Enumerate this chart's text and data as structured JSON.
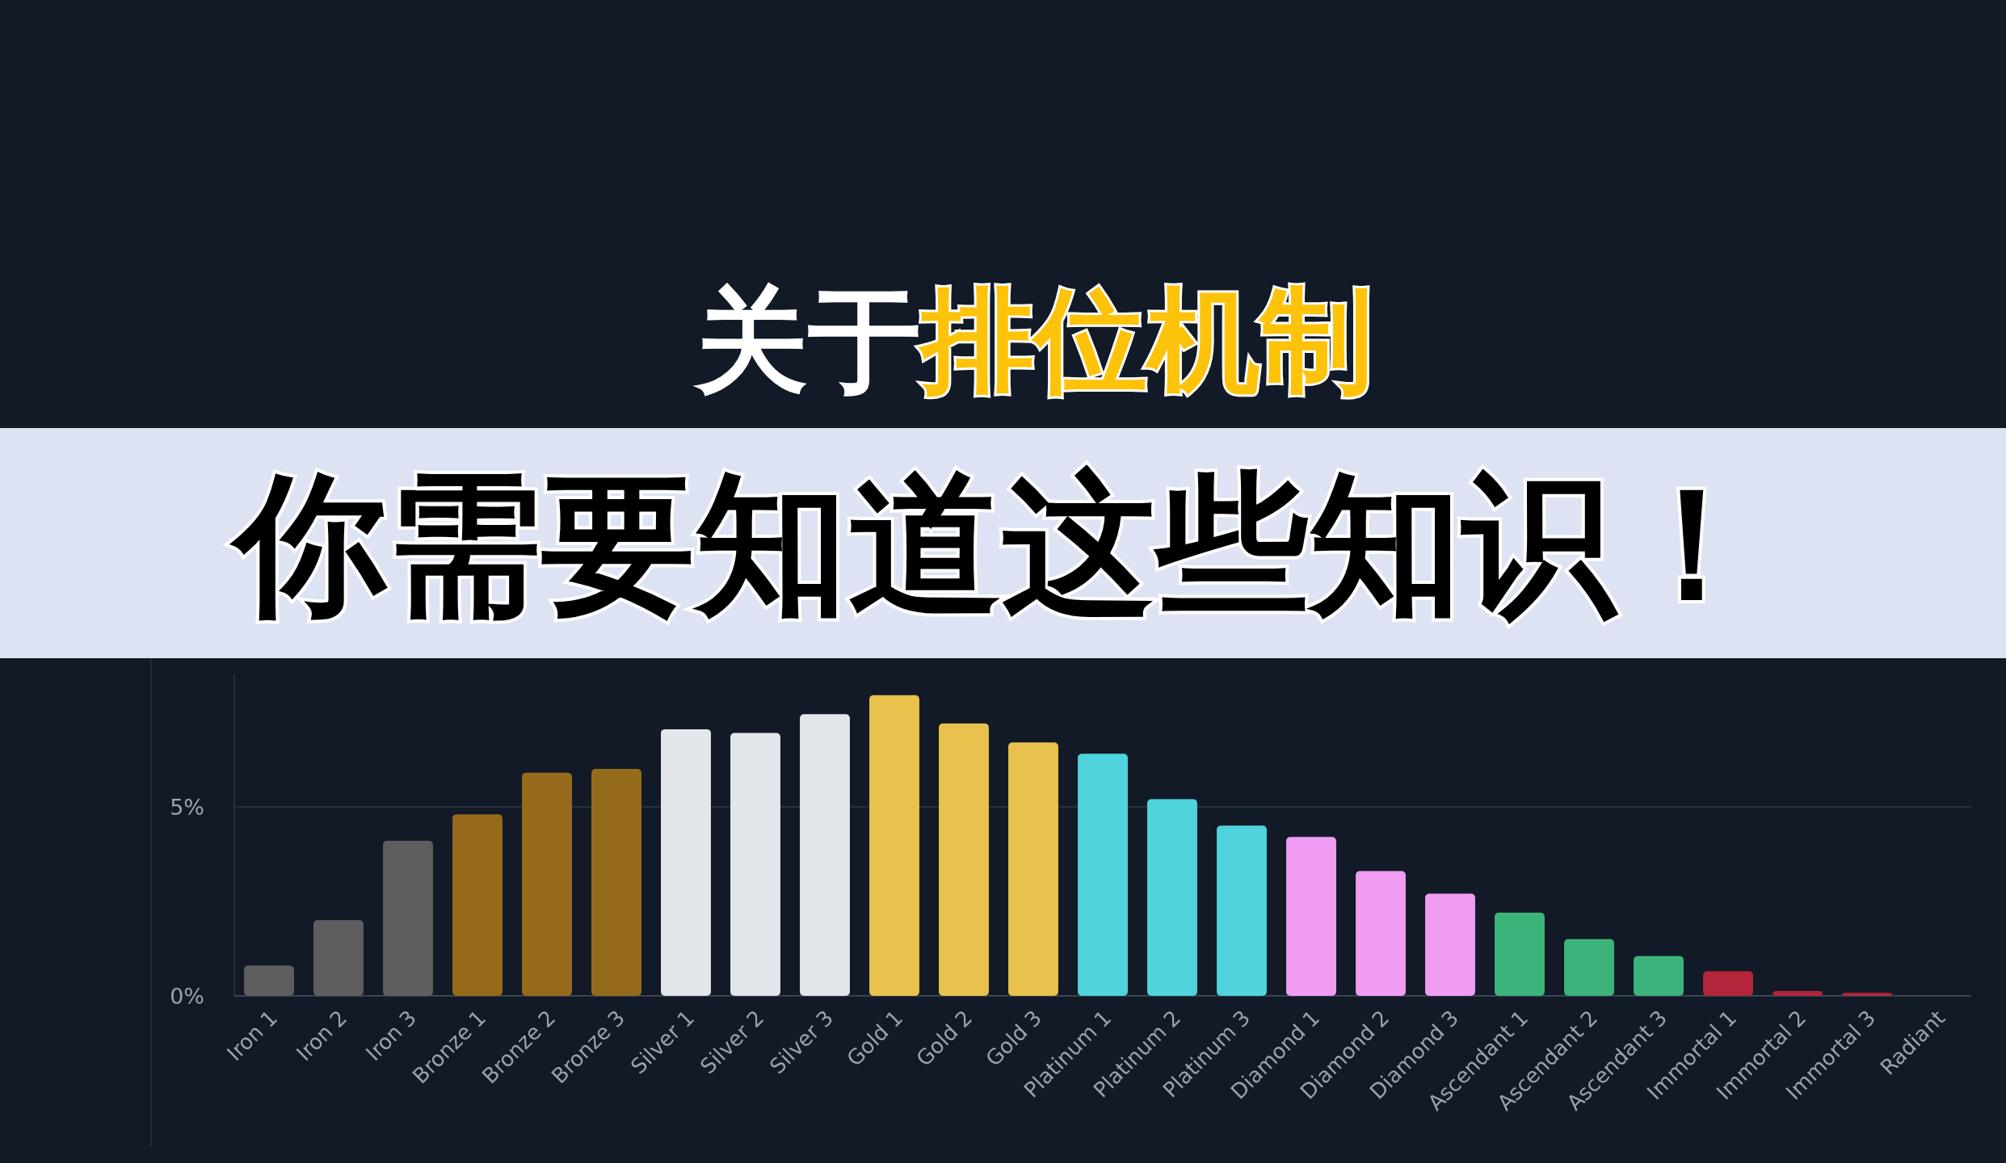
{
  "chart_data": {
    "type": "bar",
    "title": "关于**排位机制**",
    "subtitle": "你需要知道这些知识！",
    "categories": [
      "Iron 1",
      "Iron 2",
      "Iron 3",
      "Bronze 1",
      "Bronze 2",
      "Bronze 3",
      "Silver 1",
      "Silver 2",
      "Silver 3",
      "Gold 1",
      "Gold 2",
      "Gold 3",
      "Platinum 1",
      "Platinum 2",
      "Platinum 3",
      "Diamond 1",
      "Diamond 2",
      "Diamond 3",
      "Ascendant 1",
      "Ascendant 2",
      "Ascendant 3",
      "Immortal 1",
      "Immortal 2",
      "Immortal 3",
      "Radiant"
    ],
    "values": [
      0.8,
      2.0,
      4.1,
      4.8,
      5.9,
      6.0,
      7.05,
      6.95,
      7.45,
      7.95,
      7.2,
      6.7,
      6.4,
      5.2,
      4.5,
      4.2,
      3.3,
      2.7,
      2.2,
      1.5,
      1.05,
      0.65,
      0.13,
      0.08,
      null
    ],
    "colors": [
      "#5f5e5f",
      "#5f5e5f",
      "#5f5e5f",
      "#956a1a",
      "#956a1a",
      "#956a1a",
      "#e3e6ea",
      "#e3e6ea",
      "#e3e6ea",
      "#e8c24c",
      "#e8c24c",
      "#e8c24c",
      "#4fd3dd",
      "#4fd3dd",
      "#4fd3dd",
      "#f09cf2",
      "#f09cf2",
      "#f09cf2",
      "#3cb37a",
      "#3cb37a",
      "#3cb37a",
      "#b3253a",
      "#b3253a",
      "#b3253a",
      null
    ],
    "ylim": [
      0,
      8.5
    ],
    "yticks": [
      {
        "value": 0,
        "label": "0%"
      },
      {
        "value": 5,
        "label": "5%"
      }
    ],
    "grid": "y"
  }
}
